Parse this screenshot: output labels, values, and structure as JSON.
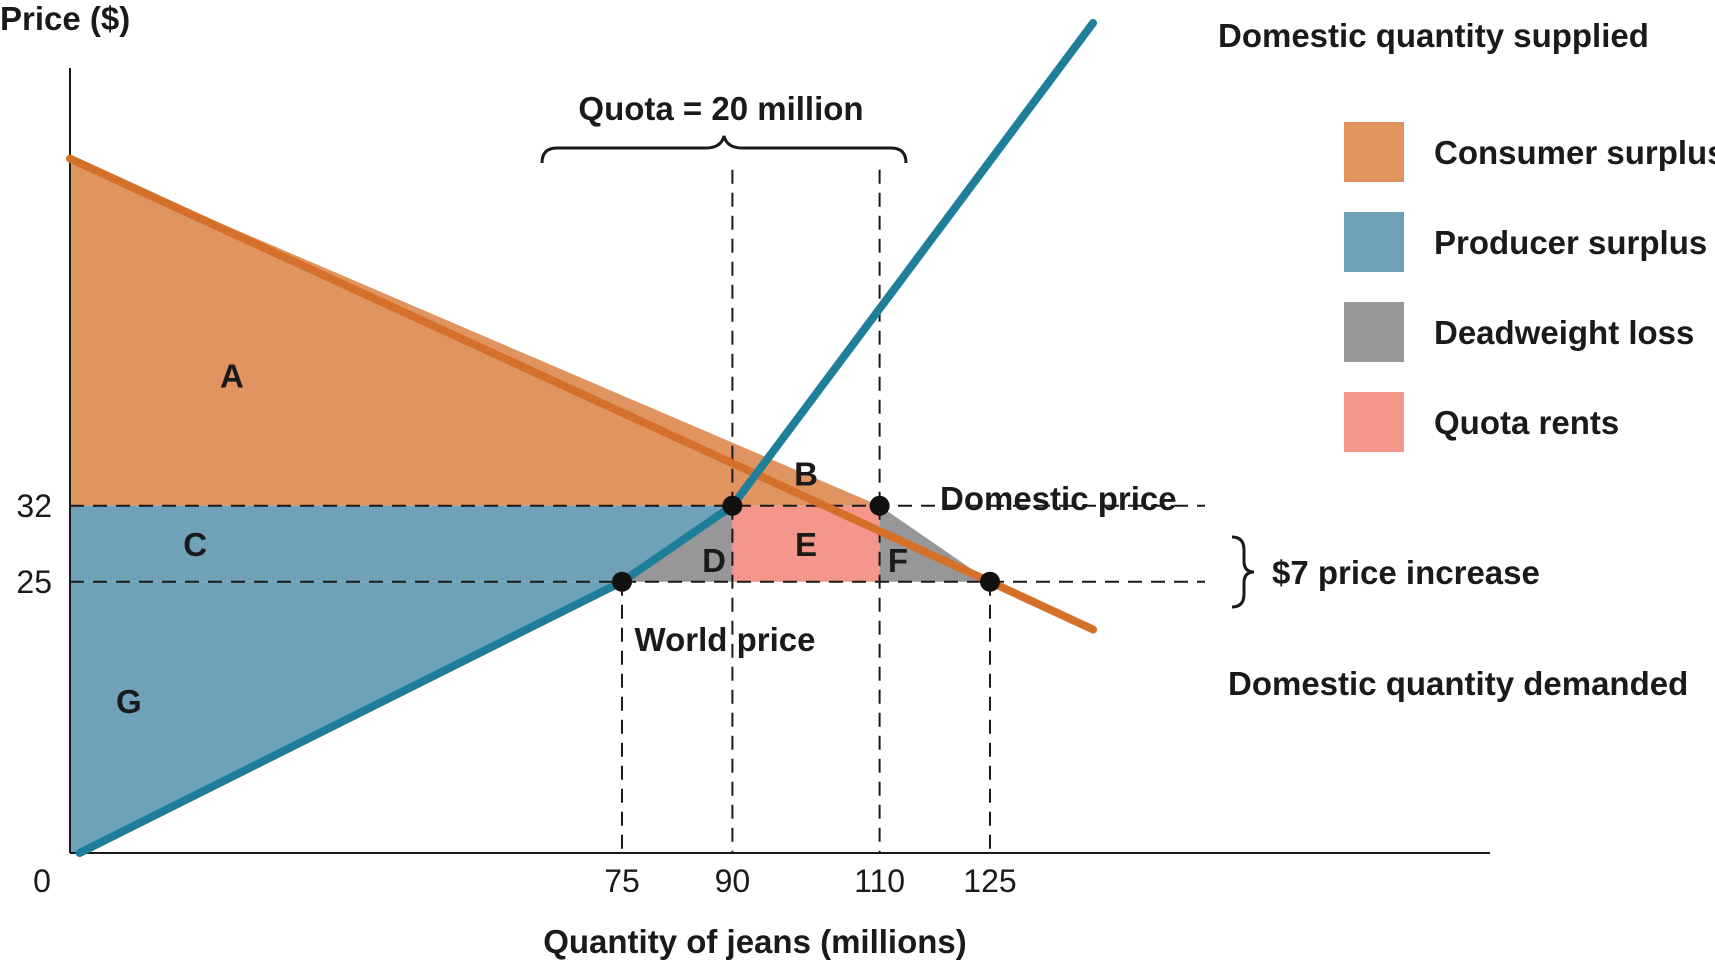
{
  "chart_data": {
    "type": "area",
    "title": "",
    "xlabel": "Quantity of jeans (millions)",
    "ylabel": "Price ($)",
    "origin_label": "0",
    "x_ticks": [
      75,
      90,
      110,
      125
    ],
    "y_ticks": [
      25,
      32
    ],
    "world_price": 25,
    "domestic_price": 32,
    "quota": {
      "from": 90,
      "to": 110,
      "label": "Quota = 20 million"
    },
    "series": [
      {
        "name": "Domestic quantity demanded",
        "color": "#d4702a",
        "points": [
          [
            0,
            64
          ],
          [
            125,
            25
          ],
          [
            139,
            20.6
          ]
        ]
      },
      {
        "name": "Domestic quantity supplied",
        "color": "#1f7f9a",
        "points": [
          [
            1.3,
            0
          ],
          [
            75,
            25
          ],
          [
            90,
            32
          ],
          [
            139,
            76.5
          ]
        ]
      }
    ],
    "points": [
      {
        "x": 75,
        "y": 25
      },
      {
        "x": 90,
        "y": 32
      },
      {
        "x": 110,
        "y": 32
      },
      {
        "x": 125,
        "y": 25
      }
    ],
    "regions": [
      {
        "label": "A",
        "legend": "Consumer surplus",
        "color": "#e0945f",
        "polygon": [
          [
            0,
            64
          ],
          [
            0,
            32
          ],
          [
            110,
            32
          ]
        ],
        "label_at": [
          22,
          44
        ]
      },
      {
        "label": "B",
        "legend": "Consumer surplus",
        "color": "#e0945f",
        "polygon": [],
        "label_at": [
          100,
          35
        ]
      },
      {
        "label": "C",
        "legend": "Producer surplus",
        "color": "#6fa2b8",
        "polygon": [
          [
            0,
            32
          ],
          [
            90,
            32
          ],
          [
            75,
            25
          ],
          [
            0,
            25
          ]
        ],
        "label_at": [
          17,
          28.5
        ]
      },
      {
        "label": "G",
        "legend": "Producer surplus",
        "color": "#6fa2b8",
        "polygon": [
          [
            0,
            25
          ],
          [
            75,
            25
          ],
          [
            1.3,
            0
          ],
          [
            0,
            0
          ]
        ],
        "label_at": [
          8,
          14
        ]
      },
      {
        "label": "D",
        "legend": "Deadweight loss",
        "color": "#97979a",
        "polygon": [
          [
            75,
            25
          ],
          [
            90,
            32
          ],
          [
            90,
            25
          ]
        ],
        "label_at": [
          87.5,
          27
        ]
      },
      {
        "label": "E",
        "legend": "Quota rents",
        "color": "#f4978a",
        "polygon": [
          [
            90,
            32
          ],
          [
            110,
            32
          ],
          [
            110,
            25
          ],
          [
            90,
            25
          ]
        ],
        "label_at": [
          100,
          28.5
        ]
      },
      {
        "label": "F",
        "legend": "Deadweight loss",
        "color": "#97979a",
        "polygon": [
          [
            110,
            32
          ],
          [
            125,
            25
          ],
          [
            110,
            25
          ]
        ],
        "label_at": [
          112.5,
          27
        ]
      }
    ],
    "annotations": {
      "domestic_price": "Domestic price",
      "world_price": "World price",
      "price_increase": "$7 price increase"
    },
    "legend": [
      {
        "label": "Consumer surplus",
        "color": "#e0945f"
      },
      {
        "label": "Producer surplus",
        "color": "#6fa2b8"
      },
      {
        "label": "Deadweight loss",
        "color": "#97979a"
      },
      {
        "label": "Quota rents",
        "color": "#f4978a"
      }
    ],
    "xlim": [
      0,
      160
    ],
    "ylim": [
      0,
      74
    ],
    "legend_position": "top-right"
  }
}
